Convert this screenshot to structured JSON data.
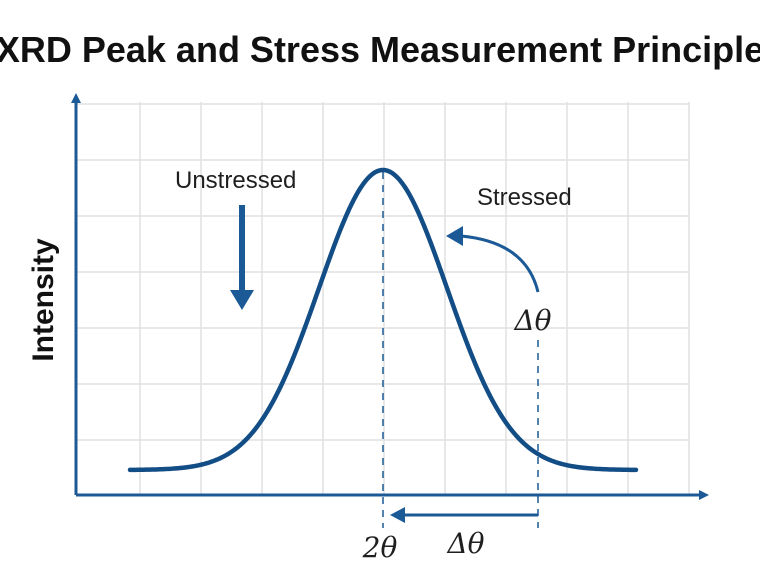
{
  "title": "XRD Peak and Stress Measurement Principle",
  "y_axis_label": "Intensity",
  "labels": {
    "unstressed": "Unstressed",
    "stressed": "Stressed",
    "delta_theta_upper": "Δθ",
    "two_theta": "2θ",
    "delta_theta_lower": "Δθ"
  },
  "colors": {
    "axis_and_curve": "#1b5a96",
    "grid": "#e1e1e1",
    "text": "#111111"
  },
  "icons": {
    "down_arrow": "down-arrow-icon",
    "curved_arrow": "curved-arrow-icon",
    "double_arrow": "delta-theta-span-icon"
  }
}
